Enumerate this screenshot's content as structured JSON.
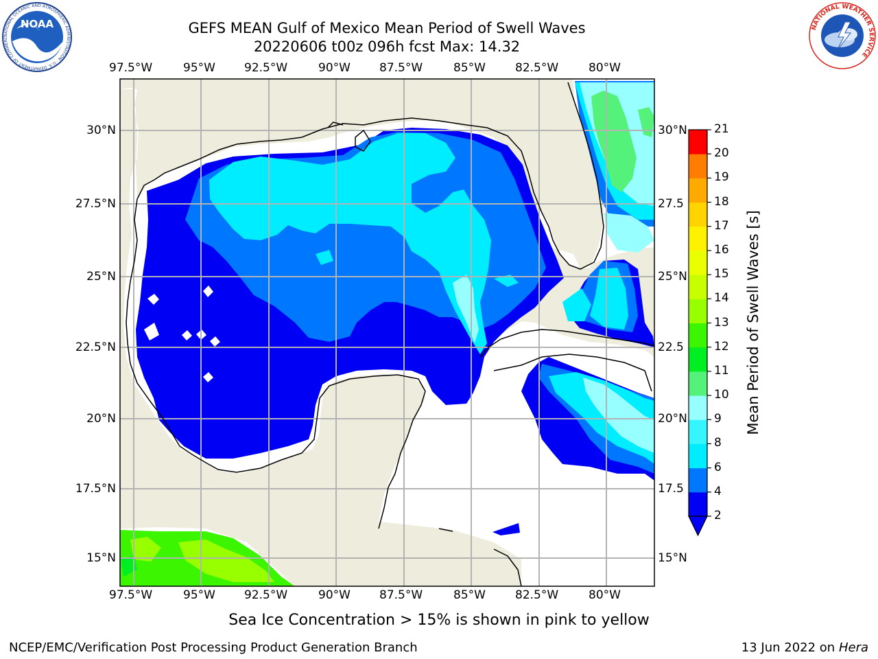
{
  "header": {
    "title_line1": "GEFS MEAN Gulf of Mexico Mean Period of Swell Waves",
    "title_line2": "20220606 t00z 096h fcst   Max: 14.32"
  },
  "logos": {
    "noaa_text": "NOAA",
    "noaa_ring_text": "NATIONAL OCEANIC AND ATMOSPHERIC ADMINISTRATION · U.S. DEPARTMENT OF COMMERCE",
    "nws_ring_text": "NATIONAL WEATHER SERVICE"
  },
  "map": {
    "lon_labels": [
      "97.5°W",
      "95°W",
      "92.5°W",
      "90°W",
      "87.5°W",
      "85°W",
      "82.5°W",
      "80°W"
    ],
    "lat_labels_left": [
      "30°N",
      "27.5°N",
      "25°N",
      "22.5°N",
      "20°N",
      "17.5°N",
      "15°N"
    ],
    "lat_labels_right": [
      "30°N",
      "27.5",
      "25°N",
      "22.5",
      "20°N",
      "17.5",
      "15°N"
    ],
    "colors": {
      "land": "#eeecdc",
      "no_data": "#ffffff",
      "grid": "#b3b3b3",
      "coast": "#000000"
    }
  },
  "colorbar": {
    "label": "Mean Period of Swell Waves [s]",
    "ticks": [
      "2",
      "4",
      "6",
      "8",
      "9",
      "10",
      "11",
      "12",
      "13",
      "14",
      "15",
      "16",
      "17",
      "18",
      "19",
      "20",
      "21"
    ],
    "colors": [
      "#0000f5",
      "#0077ff",
      "#00ecff",
      "#35f6ff",
      "#97ffff",
      "#54f27a",
      "#00ee22",
      "#3cf500",
      "#98ff00",
      "#c8ff00",
      "#eaff00",
      "#fff200",
      "#ffd400",
      "#ffaa00",
      "#ff7d00",
      "#ff4600",
      "#ff0000"
    ]
  },
  "footer": {
    "note": "Sea Ice Concentration > 15% is shown in pink to yellow",
    "credit": "NCEP/EMC/Verification Post Processing Product Generation Branch",
    "date": "13 Jun 2022 on",
    "machine": "Hera"
  }
}
